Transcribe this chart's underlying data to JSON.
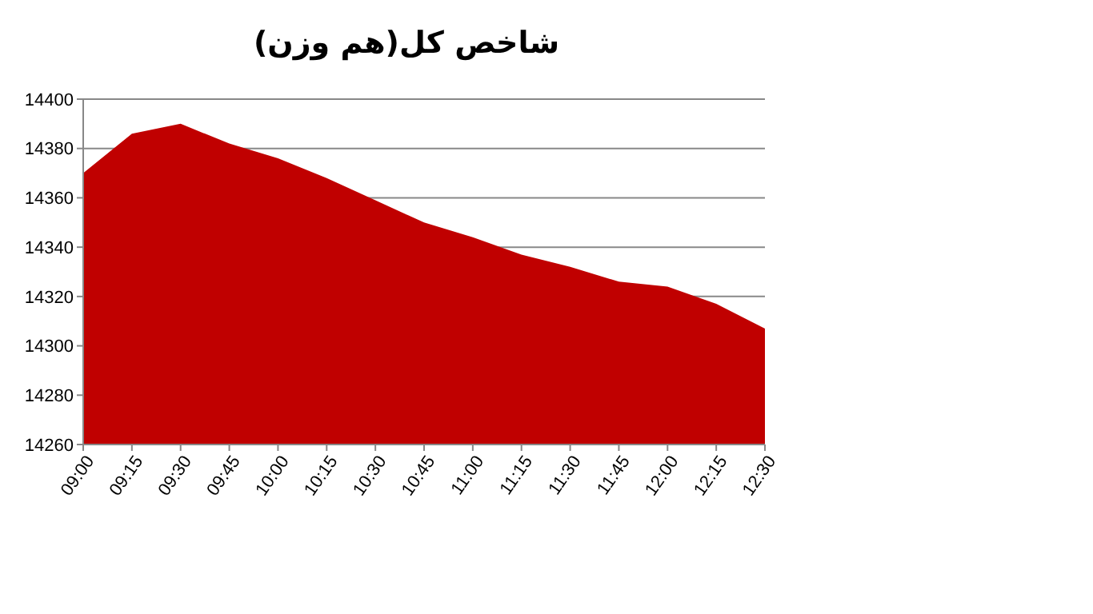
{
  "chart_data": {
    "type": "area",
    "title": "شاخص کل(هم وزن)",
    "categories": [
      "09:00",
      "09:15",
      "09:30",
      "09:45",
      "10:00",
      "10:15",
      "10:30",
      "10:45",
      "11:00",
      "11:15",
      "11:30",
      "11:45",
      "12:00",
      "12:15",
      "12:30"
    ],
    "values": [
      14370,
      14386,
      14390,
      14382,
      14376,
      14368,
      14359,
      14350,
      14344,
      14337,
      14332,
      14326,
      14324,
      14317,
      14307
    ],
    "color": "#c00000",
    "ylim": [
      14260,
      14400
    ],
    "yticks": [
      14260,
      14280,
      14300,
      14320,
      14340,
      14360,
      14380,
      14400
    ],
    "grid": "y"
  }
}
